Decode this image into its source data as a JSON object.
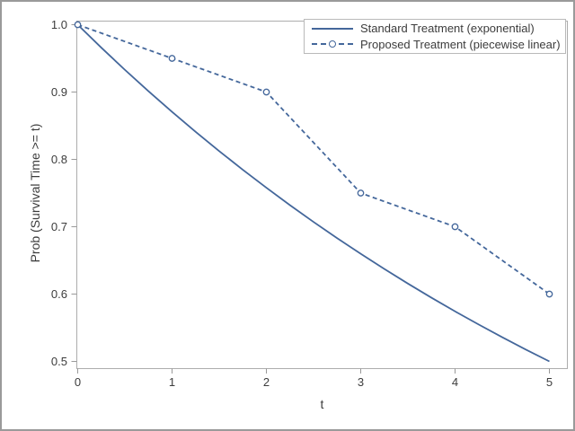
{
  "chart_data": {
    "type": "line",
    "title": "",
    "xlabel": "t",
    "ylabel": "Prob (Survival Time >= t)",
    "xlim": [
      0,
      5
    ],
    "ylim": [
      0.5,
      1.0
    ],
    "xticks": [
      "0",
      "1",
      "2",
      "3",
      "4",
      "5"
    ],
    "yticks": [
      "0.5",
      "0.6",
      "0.7",
      "0.8",
      "0.9",
      "1.0"
    ],
    "grid": false,
    "legend": {
      "position": "top-right",
      "border": true
    },
    "series": [
      {
        "name": "Standard Treatment (exponential)",
        "line_style": "solid",
        "marker": "none",
        "color": "#44679b",
        "x": [
          0,
          0.25,
          0.5,
          0.75,
          1,
          1.25,
          1.5,
          1.75,
          2,
          2.25,
          2.5,
          2.75,
          3,
          3.25,
          3.5,
          3.75,
          4,
          4.25,
          4.5,
          4.75,
          5
        ],
        "y": [
          1.0,
          0.9659,
          0.933,
          0.9013,
          0.8706,
          0.8409,
          0.8123,
          0.7846,
          0.7579,
          0.732,
          0.7071,
          0.683,
          0.6598,
          0.6373,
          0.6156,
          0.5946,
          0.5743,
          0.5548,
          0.5359,
          0.5176,
          0.5
        ]
      },
      {
        "name": "Proposed Treatment (piecewise linear)",
        "line_style": "dashed",
        "marker": "open-circle",
        "color": "#44679b",
        "x": [
          0,
          1,
          2,
          3,
          4,
          5
        ],
        "y": [
          1.0,
          0.95,
          0.9,
          0.75,
          0.7,
          0.6
        ]
      }
    ]
  },
  "colors": {
    "frame": "#adadad",
    "tick": "#999999",
    "text": "#3c3c3c",
    "background": "#ffffff",
    "outer_border": "#9a9a9a",
    "legend_border": "#b9b9b9"
  }
}
